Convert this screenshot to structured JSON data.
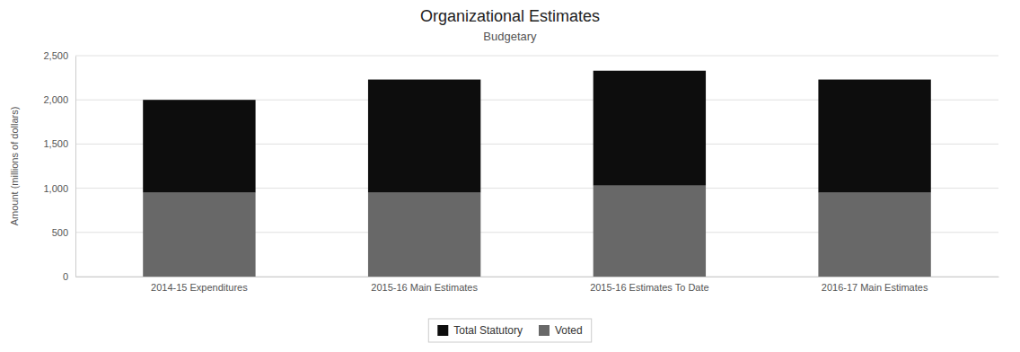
{
  "chart_data": {
    "type": "bar",
    "stacked": true,
    "title": "Organizational Estimates",
    "subtitle": "Budgetary",
    "ylabel": "Amount (millions of dollars)",
    "categories": [
      "2014-15 Expenditures",
      "2015-16 Main Estimates",
      "2015-16 Estimates To Date",
      "2016-17 Main Estimates"
    ],
    "series": [
      {
        "name": "Voted",
        "color": "#686868",
        "values": [
          950,
          950,
          1030,
          950
        ]
      },
      {
        "name": "Total Statutory",
        "color": "#0d0d0d",
        "values": [
          1050,
          1280,
          1300,
          1280
        ]
      }
    ],
    "ylim": [
      0,
      2500
    ],
    "yticks": [
      0,
      500,
      {
        "value": 1000,
        "label": "1,000"
      },
      {
        "value": 1500,
        "label": "1,500"
      },
      {
        "value": 2000,
        "label": "2,000"
      },
      {
        "value": 2500,
        "label": "2,500"
      }
    ],
    "grid": true,
    "legend": "bottom"
  }
}
